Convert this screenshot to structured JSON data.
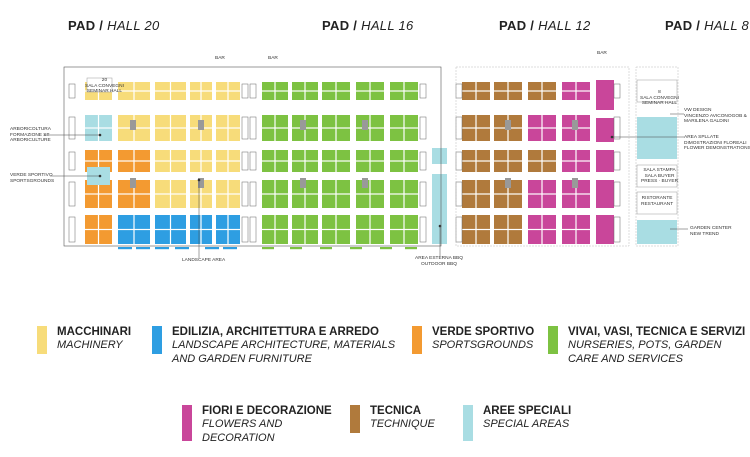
{
  "halls": {
    "h20": {
      "pad": "PAD / ",
      "hall": "HALL 20"
    },
    "h16": {
      "pad": "PAD / ",
      "hall": "HALL 16"
    },
    "h12": {
      "pad": "PAD / ",
      "hall": "HALL 12"
    },
    "h8": {
      "pad": "PAD / ",
      "hall": "HALL 8"
    }
  },
  "colors": {
    "machinery": "#f7dc7a",
    "landscape": "#2e9ee2",
    "sports": "#f39a31",
    "nursery": "#7dc242",
    "flowers": "#c9469a",
    "technique": "#b07a3c",
    "special": "#a9dde3"
  },
  "map_labels": {
    "bar1": "BAR",
    "bar2": "BAR",
    "bar3": "BAR",
    "hall20_sala": "20\nSALA CONVEGNI\nSEMINAR HALL",
    "arboricoltura": "ARBORICOLTURA\nFORMAZIONE ST\nARBORICULTURE",
    "verde_sportivo": "VERDE SPORTIVO\nSPORTSGROUNDS",
    "landscape_area": "LANDSCAPE AREA",
    "area_esterna_1": "AREA ESTERNA BBQ",
    "area_esterna_2": "OUTDOOR BBQ",
    "hall8_sala": "8\nSALA CONVEGNI\nSEMINAR HALL",
    "vw_design": "VW DESIGN\nVINCENZO AVICONOGOB &\nMARILENA GALDINI",
    "aree_spllate": "AREA SPLLATE\nDIMOSTRAZIONI FLOREALI\nFLOWER DEMONSTRATIONS",
    "sala_stampa": "SALA STAMPA\nSALA BUYER\nPRESS · BUYER",
    "ristorante": "RISTORANTE\nRESTAURANT",
    "garden_center": "GARDEN CENTER\nNEW TREND"
  },
  "legend": [
    {
      "key": "machinery",
      "title": "MACCHINARI",
      "sub": "MACHINERY"
    },
    {
      "key": "landscape",
      "title": "EDILIZIA, ARCHITETTURA E ARREDO",
      "sub": "LANDSCAPE ARCHITECTURE, MATERIALS\nAND GARDEN FURNITURE"
    },
    {
      "key": "sports",
      "title": "VERDE SPORTIVO",
      "sub": "SPORTSGROUNDS"
    },
    {
      "key": "nursery",
      "title": "VIVAI, VASI, TECNICA E SERVIZI",
      "sub": "NURSERIES, POTS, GARDEN\nCARE AND SERVICES"
    },
    {
      "key": "flowers",
      "title": "FIORI E DECORAZIONE",
      "sub": "FLOWERS AND\nDECORATION"
    },
    {
      "key": "technique",
      "title": "TECNICA",
      "sub": "TECHNIQUE"
    },
    {
      "key": "special",
      "title": "AREE SPECIALI",
      "sub": "SPECIAL AREAS"
    }
  ]
}
